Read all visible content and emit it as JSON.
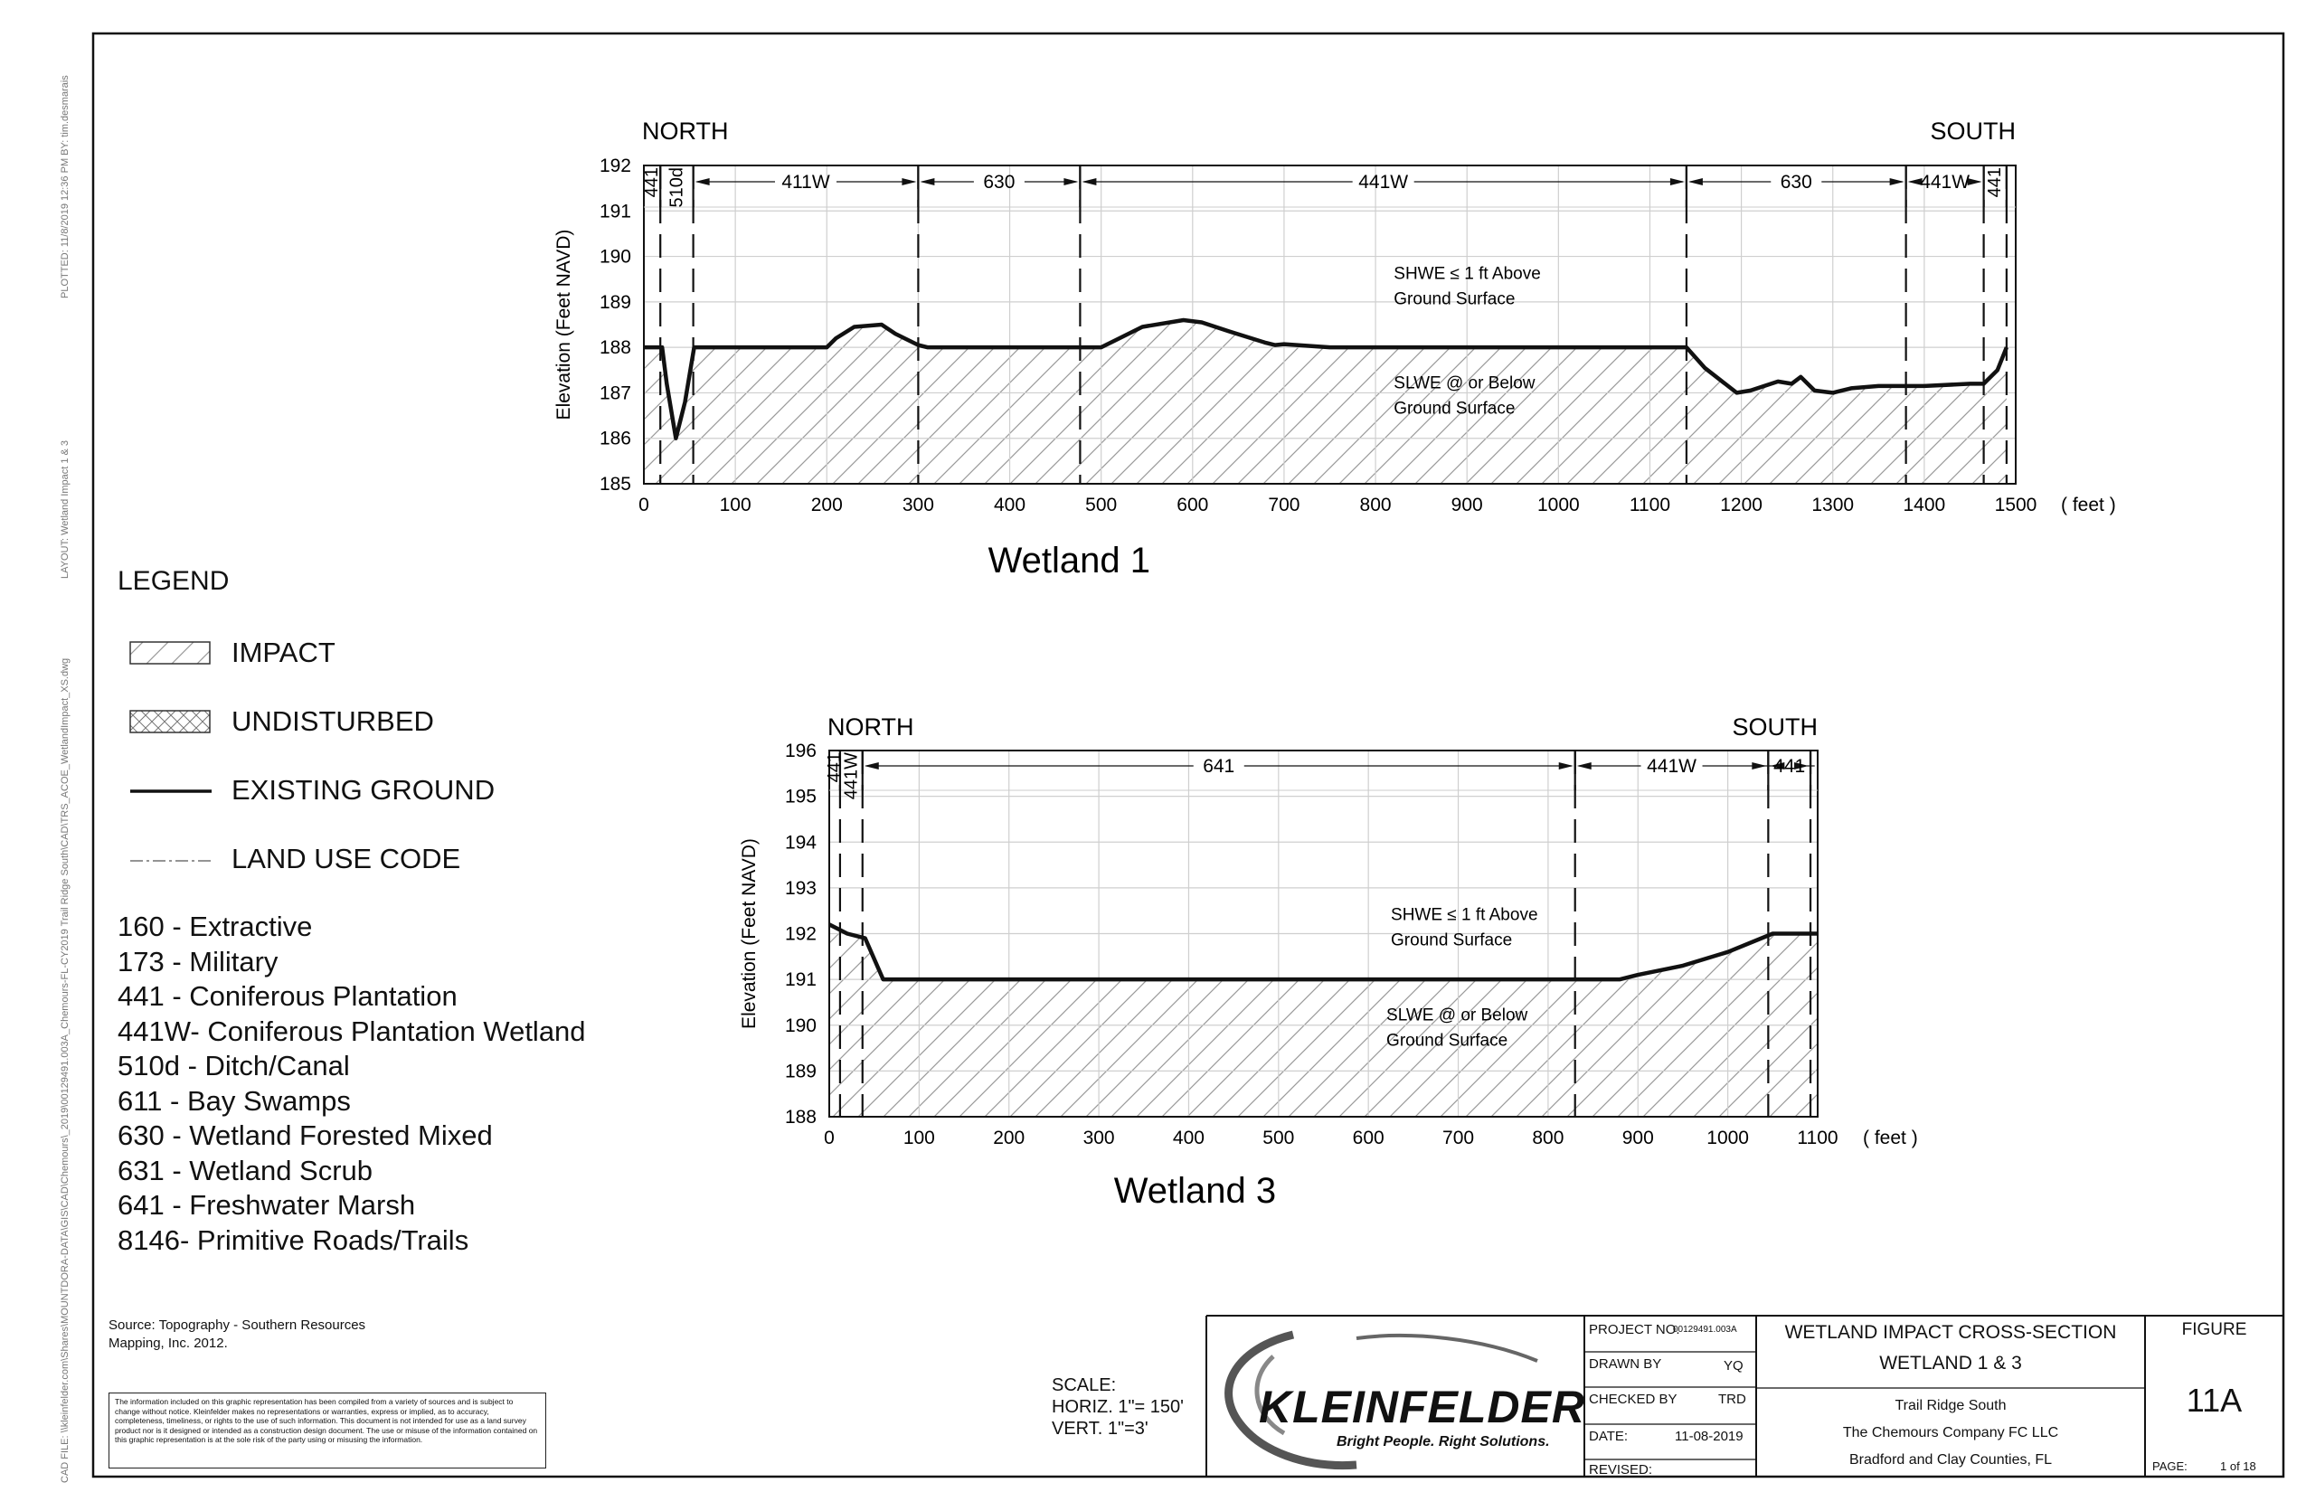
{
  "side_text": {
    "plotted": "PLOTTED:    11/8/2019 12:36 PM   BY: tim.desmarais",
    "layout": "LAYOUT:   Wetland Impact 1 & 3",
    "cad_file": "CAD FILE:   \\\\kleinfelder.com\\Shares\\MOUNTDORA-DATA\\GIS\\CAD\\Chemours\\_2019\\00129491.003A_Chemours-FL-CY2019 Trail Ridge South\\CAD\\TRS_ACOE_WetlandImpact_XS.dwg"
  },
  "legend": {
    "title": "LEGEND",
    "items": [
      {
        "label": "IMPACT",
        "pattern": "hatch"
      },
      {
        "label": "UNDISTURBED",
        "pattern": "crosshatch"
      },
      {
        "label": "EXISTING GROUND",
        "pattern": "line"
      },
      {
        "label": "LAND USE CODE",
        "pattern": "dashdot"
      }
    ],
    "codes": [
      "160 - Extractive",
      "173 - Military",
      "441 - Coniferous Plantation",
      "441W- Coniferous Plantation Wetland",
      "510d - Ditch/Canal",
      "611 - Bay Swamps",
      "630 - Wetland Forested Mixed",
      "631 - Wetland Scrub",
      "641 - Freshwater Marsh",
      "8146- Primitive Roads/Trails"
    ]
  },
  "source": {
    "line1": "Source: Topography - Southern Resources",
    "line2": "Mapping, Inc. 2012."
  },
  "disclaimer": "The information included on this graphic representation has been compiled from a variety of sources and is subject to change without notice. Kleinfelder makes no representations or warranties, express or implied, as to accuracy, completeness, timeliness, or rights to the use of such information. This document is not intended for use as a land survey product nor is it designed or intended as a construction design document. The use or misuse of the information contained on this graphic representation is at the sole risk of the party using or misusing the information.",
  "scale": {
    "label": "SCALE:",
    "horiz": "HORIZ. 1\"= 150'",
    "vert": "VERT. 1\"=3'"
  },
  "title_block": {
    "logo_text": "KLEINFELDER",
    "logo_tagline": "Bright People. Right Solutions.",
    "project_no_label": "PROJECT NO.",
    "project_no": "00129491.003A",
    "drawn_by_label": "DRAWN BY",
    "drawn_by": "YQ",
    "checked_by_label": "CHECKED BY",
    "checked_by": "TRD",
    "date_label": "DATE:",
    "date": "11-08-2019",
    "revised_label": "REVISED:",
    "title_line1": "WETLAND IMPACT CROSS-SECTION",
    "title_line2": "WETLAND 1 & 3",
    "project_line1": "Trail Ridge South",
    "project_line2": "The Chemours Company FC LLC",
    "project_line3": "Bradford and Clay Counties, FL",
    "figure_label": "FIGURE",
    "figure_number": "11A",
    "page_label": "PAGE:",
    "page_value": "1   of  18"
  },
  "chart_data": [
    {
      "type": "line",
      "title": "Wetland 1",
      "xlabel": "( feet )",
      "ylabel": "Elevation (Feet NAVD)",
      "xlim": [
        0,
        1500
      ],
      "ylim": [
        185,
        192
      ],
      "xticks": [
        0,
        100,
        200,
        300,
        400,
        500,
        600,
        700,
        800,
        900,
        1000,
        1100,
        1200,
        1300,
        1400,
        1500
      ],
      "yticks": [
        185,
        186,
        187,
        188,
        189,
        190,
        191,
        192
      ],
      "grid": true,
      "direction_left": "NORTH",
      "direction_right": "SOUTH",
      "annotations": [
        {
          "text_line1": "SHWE ≤ 1 ft Above",
          "text_line2": "Ground Surface",
          "x": 820,
          "y": 189.5
        },
        {
          "text_line1": "SLWE @ or Below",
          "text_line2": "Ground Surface",
          "x": 820,
          "y": 187.1
        }
      ],
      "impact_zones": [
        [
          0,
          54
        ],
        [
          300,
          477
        ],
        [
          1140,
          1380
        ],
        [
          1465,
          1490
        ]
      ],
      "land_use_boundaries": [
        0,
        18,
        54,
        300,
        477,
        1140,
        1380,
        1465,
        1490
      ],
      "land_use_segments": [
        {
          "code": "441",
          "from": 0,
          "to": 18,
          "vertical": true
        },
        {
          "code": "510d",
          "from": 18,
          "to": 54,
          "vertical": true
        },
        {
          "code": "411W",
          "from": 54,
          "to": 300,
          "vertical": false
        },
        {
          "code": "630",
          "from": 300,
          "to": 477,
          "vertical": false
        },
        {
          "code": "441W",
          "from": 477,
          "to": 1140,
          "vertical": false
        },
        {
          "code": "630",
          "from": 1140,
          "to": 1380,
          "vertical": false
        },
        {
          "code": "441W",
          "from": 1380,
          "to": 1465,
          "vertical": false
        },
        {
          "code": "441",
          "from": 1465,
          "to": 1490,
          "vertical": true
        }
      ],
      "series": [
        {
          "x": [
            0,
            20,
            25,
            35,
            45,
            55,
            70,
            200,
            210,
            230,
            260,
            275,
            300,
            310,
            500,
            515,
            545,
            590,
            610,
            640,
            680,
            690,
            700,
            750,
            1100,
            1140,
            1160,
            1195,
            1210,
            1240,
            1255,
            1265,
            1280,
            1300,
            1320,
            1350,
            1400,
            1450,
            1465,
            1480,
            1490
          ],
          "y": [
            188,
            188,
            187.2,
            186,
            186.8,
            188,
            188,
            188,
            188.2,
            188.45,
            188.5,
            188.3,
            188.05,
            188,
            188,
            188.15,
            188.45,
            188.6,
            188.55,
            188.35,
            188.1,
            188.05,
            188.07,
            188,
            188,
            188,
            187.55,
            187,
            187.05,
            187.25,
            187.2,
            187.35,
            187.05,
            187,
            187.1,
            187.15,
            187.15,
            187.2,
            187.2,
            187.5,
            188
          ]
        }
      ]
    },
    {
      "type": "line",
      "title": "Wetland 3",
      "xlabel": "( feet )",
      "ylabel": "Elevation (Feet NAVD)",
      "xlim": [
        0,
        1100
      ],
      "ylim": [
        188,
        196
      ],
      "xticks": [
        0,
        100,
        200,
        300,
        400,
        500,
        600,
        700,
        800,
        900,
        1000,
        1100
      ],
      "yticks": [
        188,
        189,
        190,
        191,
        192,
        193,
        194,
        195,
        196
      ],
      "grid": true,
      "direction_left": "NORTH",
      "direction_right": "SOUTH",
      "annotations": [
        {
          "text_line1": "SHWE ≤ 1 ft Above",
          "text_line2": "Ground Surface",
          "x": 625,
          "y": 192.3
        },
        {
          "text_line1": "SLWE @ or Below",
          "text_line2": "Ground Surface",
          "x": 620,
          "y": 190.1
        }
      ],
      "impact_zones": [
        [
          0,
          830
        ],
        [
          1045,
          1100
        ]
      ],
      "land_use_boundaries": [
        0,
        12,
        37,
        830,
        1045,
        1092
      ],
      "land_use_segments": [
        {
          "code": "441",
          "from": 0,
          "to": 12,
          "vertical": true
        },
        {
          "code": "441W",
          "from": 12,
          "to": 37,
          "vertical": true
        },
        {
          "code": "641",
          "from": 37,
          "to": 830,
          "vertical": false
        },
        {
          "code": "441W",
          "from": 830,
          "to": 1045,
          "vertical": false
        },
        {
          "code": "441",
          "from": 1045,
          "to": 1092,
          "vertical": false
        }
      ],
      "series": [
        {
          "x": [
            0,
            20,
            40,
            60,
            100,
            880,
            900,
            950,
            1000,
            1050,
            1080,
            1100
          ],
          "y": [
            192.2,
            192,
            191.9,
            191,
            191,
            191,
            191.1,
            191.3,
            191.6,
            192,
            192,
            192
          ]
        }
      ]
    }
  ]
}
